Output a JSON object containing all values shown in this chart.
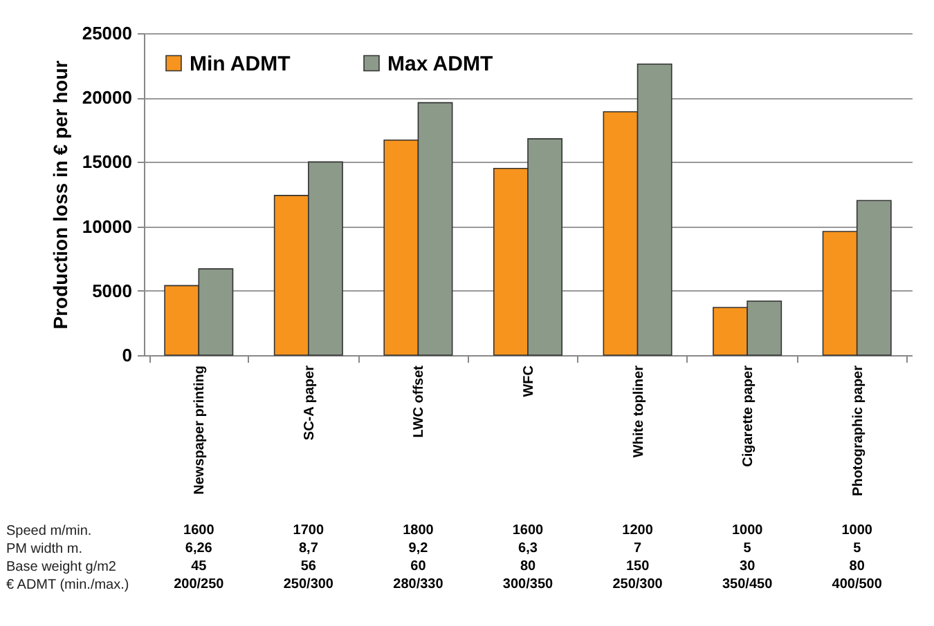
{
  "chart_data": {
    "type": "bar",
    "ylabel": "Production loss in € per hour",
    "categories": [
      "Newspaper printing",
      "SC-A paper",
      "LWC offset",
      "WFC",
      "White topliner",
      "Cigarette paper",
      "Photographic paper"
    ],
    "series": [
      {
        "name": "Min ADMT",
        "color": "#f7941d",
        "values": [
          5400,
          12400,
          16700,
          14500,
          18900,
          3700,
          9600
        ]
      },
      {
        "name": "Max ADMT",
        "color": "#8c9a8a",
        "values": [
          6700,
          15000,
          19600,
          16800,
          22600,
          4200,
          12000
        ]
      }
    ],
    "ylim": [
      0,
      25000
    ],
    "yticks": [
      0,
      5000,
      10000,
      15000,
      20000,
      25000
    ],
    "grid": "y",
    "legend": "top left",
    "annotations": [
      "Speed m/min.",
      "1600",
      "1700",
      "1800",
      "1600",
      "1200",
      "1000",
      "1000",
      "PM width m.",
      "6,26",
      "8,7",
      "9,2",
      "6,3",
      "7",
      "5",
      "5",
      "Base weight g/m2",
      "45",
      "56",
      "60",
      "80",
      "150",
      "30",
      "80",
      "€ ADMT (min./max.)",
      "200/250",
      "250/300",
      "280/330",
      "300/350",
      "250/300",
      "350/450",
      "400/500"
    ]
  }
}
